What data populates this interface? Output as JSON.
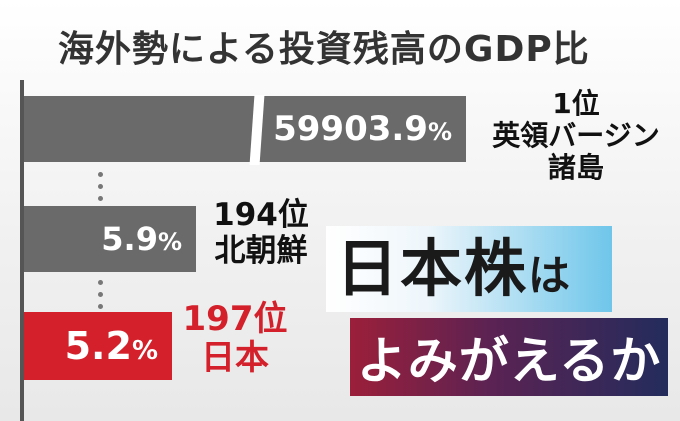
{
  "chart_data": {
    "type": "bar",
    "title": "海外勢による投資残高のGDP比",
    "unit": "%",
    "bars": [
      {
        "value": 59903.9,
        "value_label": "59903.9",
        "rank": "1位",
        "country": "英領バージン諸島",
        "country_line1": "英領バージン",
        "country_line2": "諸島",
        "color": "#6a6a6a"
      },
      {
        "value": 5.9,
        "value_label": "5.9",
        "rank": "194位",
        "country": "北朝鮮",
        "color": "#6a6a6a"
      },
      {
        "value": 5.2,
        "value_label": "5.2",
        "rank": "197位",
        "country": "日本",
        "color": "#d4202a"
      }
    ],
    "axis_break": true
  },
  "headline": {
    "line1_big": "日本株",
    "line1_small": "は",
    "line2": "よみがえるか"
  },
  "colors": {
    "highlight": "#d4202a",
    "bar_gray": "#6a6a6a",
    "headline_blue": "#6fc6ea",
    "headline_dark": "#232c5c"
  }
}
